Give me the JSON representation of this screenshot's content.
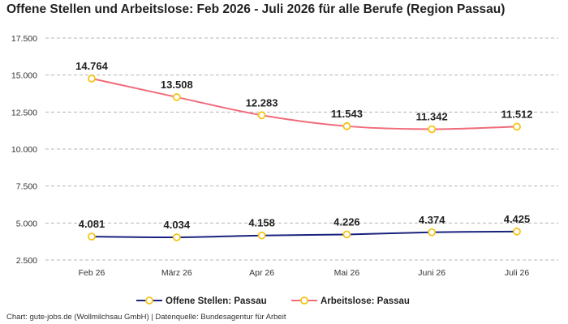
{
  "title": "Offene Stellen und Arbeitslose: Feb 2026 - Juli 2026 für alle Berufe (Region Passau)",
  "source": "Chart: gute-jobs.de (Wollmilchsau GmbH) | Datenquelle: Bundesagentur für Arbeit",
  "chart_data": {
    "type": "line",
    "categories": [
      "Feb 26",
      "März 26",
      "Apr 26",
      "Mai 26",
      "Juni 26",
      "Juli 26"
    ],
    "series": [
      {
        "name": "Offene Stellen: Passau",
        "values": [
          4081,
          4034,
          4158,
          4226,
          4374,
          4425
        ],
        "labels": [
          "4.081",
          "4.034",
          "4.158",
          "4.226",
          "4.374",
          "4.425"
        ],
        "color": "#1a237e"
      },
      {
        "name": "Arbeitslose: Passau",
        "values": [
          14764,
          13508,
          12283,
          11543,
          11342,
          11512
        ],
        "labels": [
          "14.764",
          "13.508",
          "12.283",
          "11.543",
          "11.342",
          "11.512"
        ],
        "color": "#f06b7a"
      }
    ],
    "yticks": [
      2500,
      5000,
      7500,
      10000,
      12500,
      15000,
      17500
    ],
    "yticklabels": [
      "2.500",
      "5.000",
      "7.500",
      "10.000",
      "12.500",
      "15.000",
      "17.500"
    ],
    "ylim": [
      2500,
      17500
    ],
    "marker_color": "#f5c518",
    "grid": true,
    "legend": "bottom-center"
  }
}
